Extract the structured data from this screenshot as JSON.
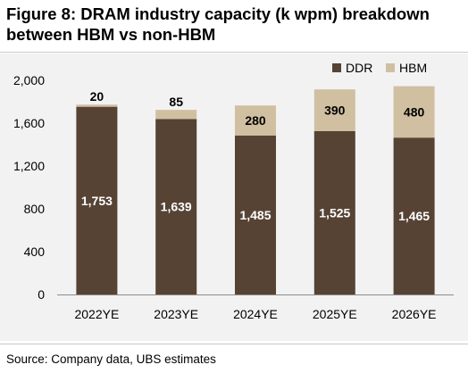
{
  "figure": {
    "title_line1": "Figure 8: DRAM industry capacity (k wpm) breakdown",
    "title_line2": "between HBM vs non-HBM",
    "source": "Source: Company data, UBS estimates"
  },
  "chart_data": {
    "type": "bar",
    "stacked": true,
    "title": "Figure 8: DRAM industry capacity (k wpm) breakdown between HBM vs non-HBM",
    "xlabel": "",
    "ylabel": "",
    "categories": [
      "2022YE",
      "2023YE",
      "2024YE",
      "2025YE",
      "2026YE"
    ],
    "series": [
      {
        "name": "DDR",
        "values": [
          1753,
          1639,
          1485,
          1525,
          1465
        ],
        "color": "#564334"
      },
      {
        "name": "HBM",
        "values": [
          20,
          85,
          280,
          390,
          480
        ],
        "color": "#d0c0a1"
      }
    ],
    "data_labels": {
      "DDR": [
        "1,753",
        "1,639",
        "1,485",
        "1,525",
        "1,465"
      ],
      "HBM": [
        "20",
        "85",
        "280",
        "390",
        "480"
      ]
    },
    "ylim": [
      0,
      2000
    ],
    "yticks": [
      0,
      400,
      800,
      1200,
      1600,
      2000
    ],
    "ytick_labels": [
      "0",
      "400",
      "800",
      "1,200",
      "1,600",
      "2,000"
    ],
    "legend_position": "top-right",
    "grid": false,
    "background": "#f2f2f2"
  }
}
